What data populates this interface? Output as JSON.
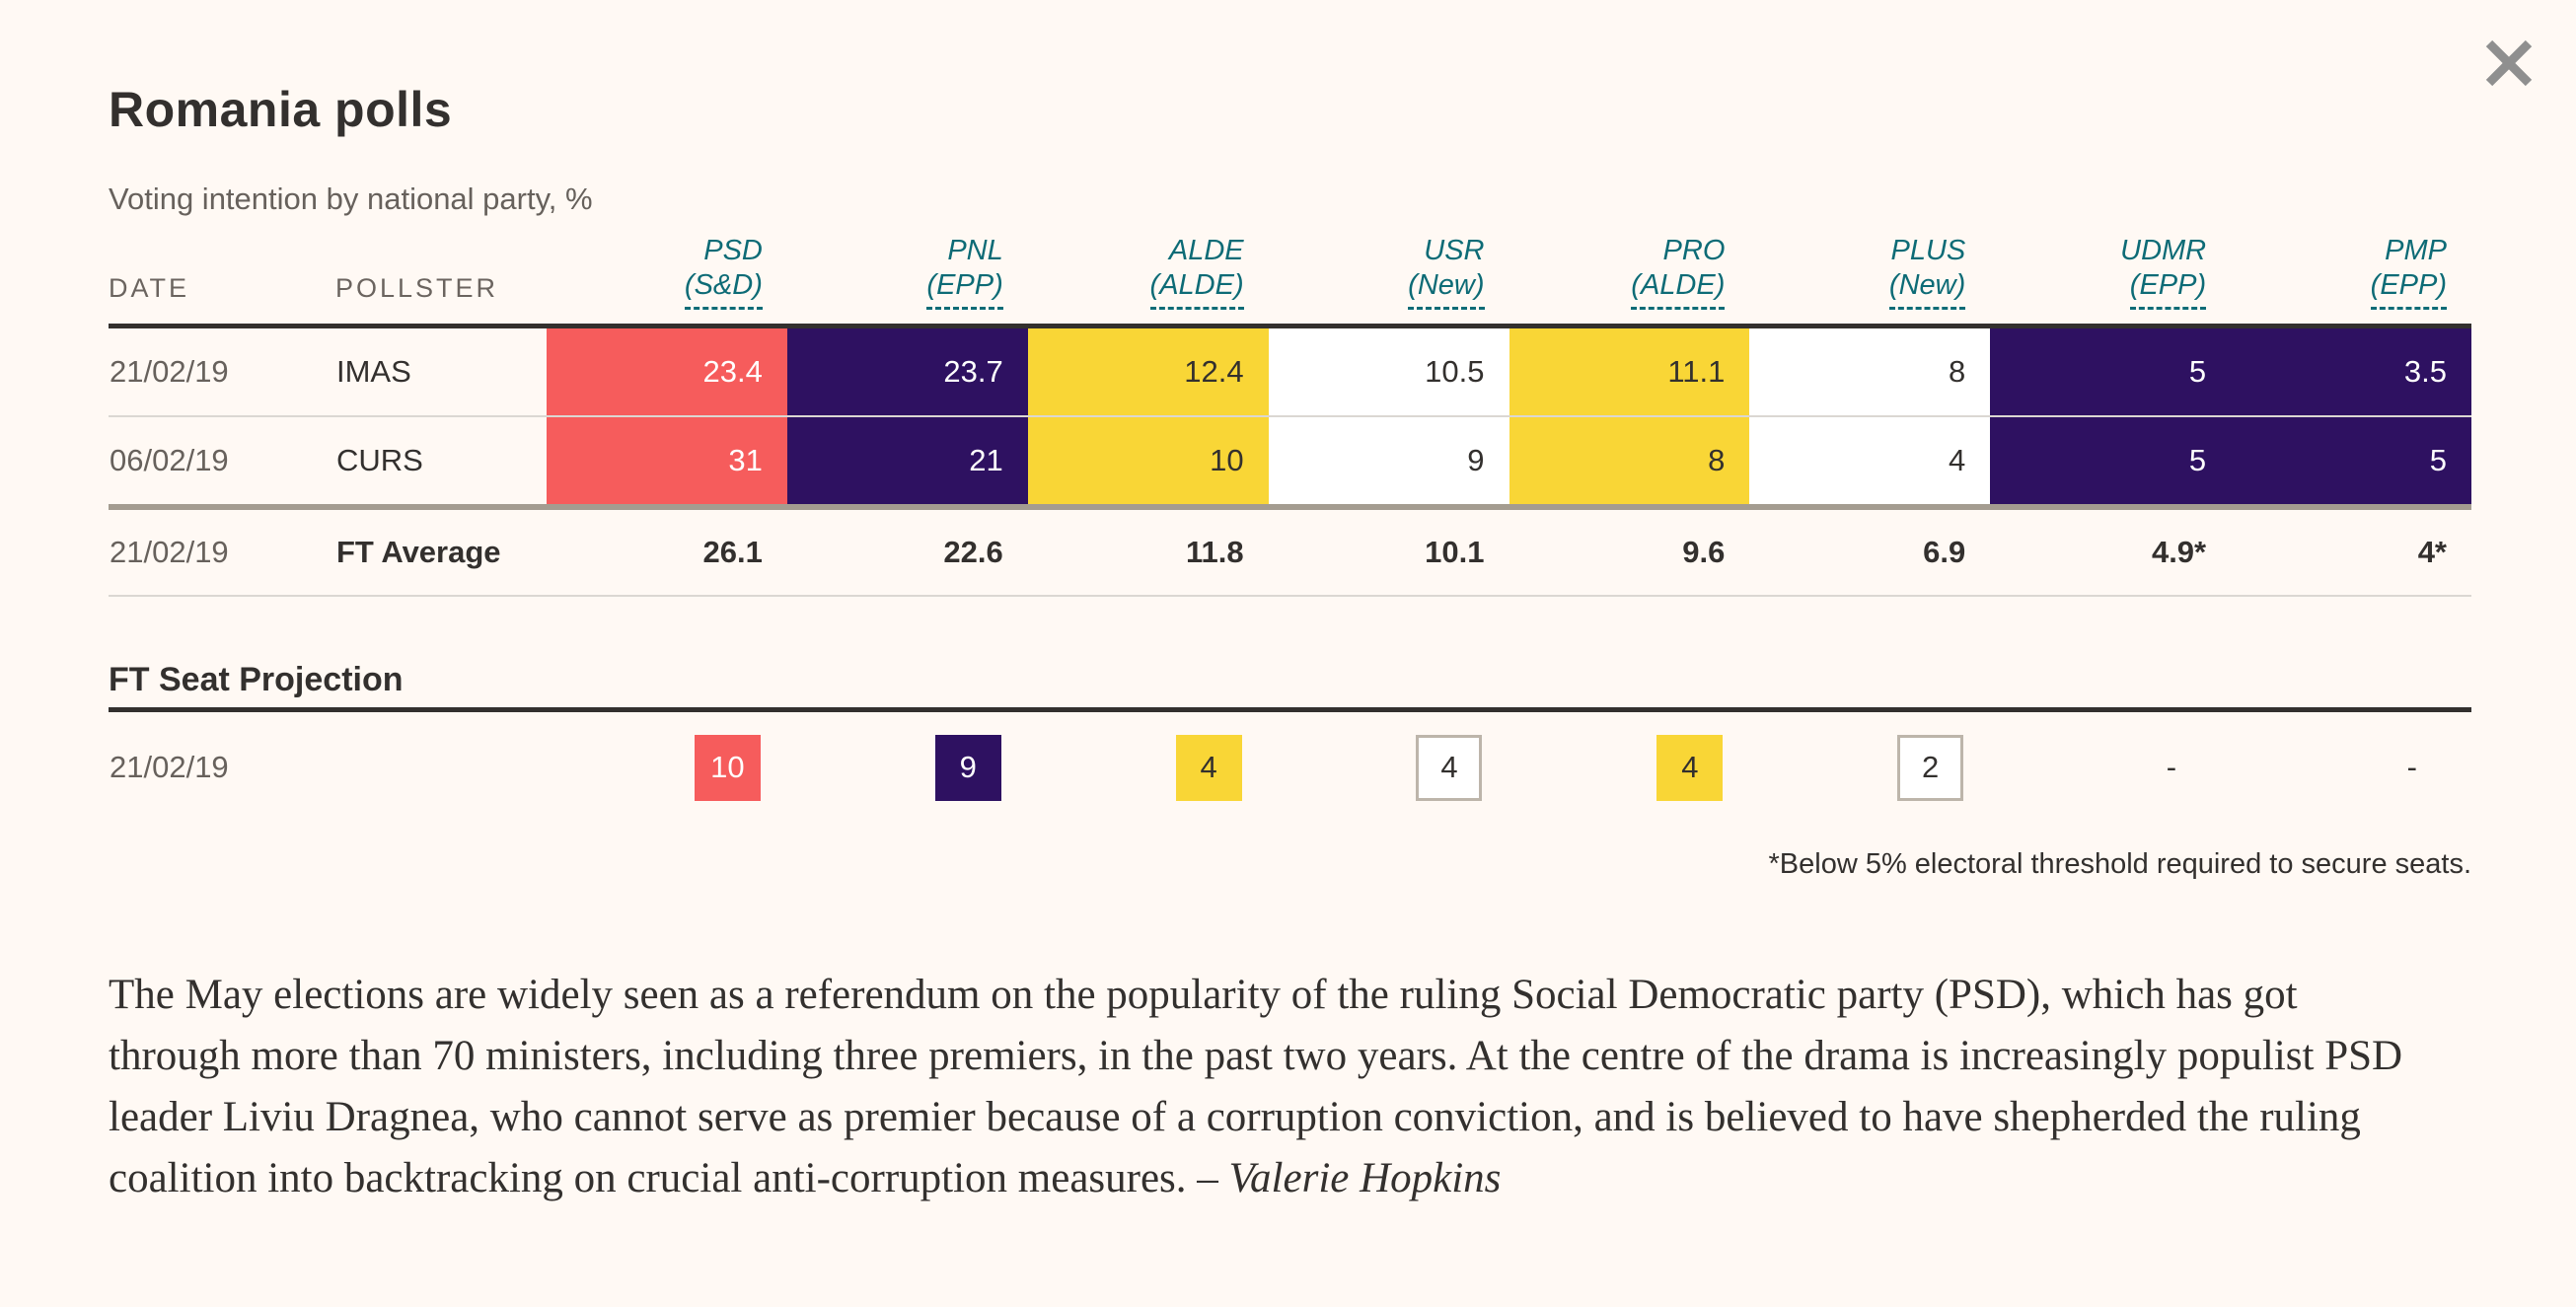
{
  "header": {
    "title": "Romania polls",
    "subtitle": "Voting intention by national party, %"
  },
  "colors": {
    "background": "#fff9f4",
    "text_dark": "#33302e",
    "text_gray": "#67615c",
    "teal_header": "#0d6b76",
    "psd_red": "#f65c5c",
    "epp_purple": "#2e1161",
    "alde_yellow": "#f9d636",
    "rule_tan": "#a49c90",
    "close_gray": "#8f8f8f"
  },
  "table": {
    "label_columns": [
      "DATE",
      "POLLSTER"
    ],
    "party_columns": [
      {
        "name": "PSD",
        "group": "(S&D)",
        "bg": "#f65c5c",
        "fg": "#ffffff"
      },
      {
        "name": "PNL",
        "group": "(EPP)",
        "bg": "#2e1161",
        "fg": "#ffffff"
      },
      {
        "name": "ALDE",
        "group": "(ALDE)",
        "bg": "#f9d636",
        "fg": "#33302e"
      },
      {
        "name": "USR",
        "group": "(New)",
        "bg": "#ffffff",
        "fg": "#33302e"
      },
      {
        "name": "PRO",
        "group": "(ALDE)",
        "bg": "#f9d636",
        "fg": "#33302e"
      },
      {
        "name": "PLUS",
        "group": "(New)",
        "bg": "#ffffff",
        "fg": "#33302e"
      },
      {
        "name": "UDMR",
        "group": "(EPP)",
        "bg": "#2e1161",
        "fg": "#ffffff"
      },
      {
        "name": "PMP",
        "group": "(EPP)",
        "bg": "#2e1161",
        "fg": "#ffffff"
      }
    ],
    "rows": [
      {
        "date": "21/02/19",
        "pollster": "IMAS",
        "values": [
          "23.4",
          "23.7",
          "12.4",
          "10.5",
          "11.1",
          "8",
          "5",
          "3.5"
        ]
      },
      {
        "date": "06/02/19",
        "pollster": "CURS",
        "values": [
          "31",
          "21",
          "10",
          "9",
          "8",
          "4",
          "5",
          "5"
        ]
      }
    ],
    "average_row": {
      "date": "21/02/19",
      "label": "FT Average",
      "values": [
        "26.1",
        "22.6",
        "11.8",
        "10.1",
        "9.6",
        "6.9",
        "4.9*",
        "4*"
      ]
    }
  },
  "seat_projection": {
    "heading": "FT Seat Projection",
    "date": "21/02/19",
    "seats": [
      {
        "value": "10",
        "style": "red"
      },
      {
        "value": "9",
        "style": "purple"
      },
      {
        "value": "4",
        "style": "yellow"
      },
      {
        "value": "4",
        "style": "outline"
      },
      {
        "value": "4",
        "style": "yellow"
      },
      {
        "value": "2",
        "style": "outline"
      },
      {
        "value": "-",
        "style": "none"
      },
      {
        "value": "-",
        "style": "none"
      }
    ],
    "footnote": "*Below 5% electoral threshold required to secure seats."
  },
  "article": {
    "text": "The May elections are widely seen as a referendum on the popularity of the ruling Social Democratic party (PSD), which has got\nthrough more than 70 ministers, including three premiers, in the past two years. At the centre of the drama is increasingly populist PSD\nleader Liviu Dragnea, who cannot serve as premier because of a corruption conviction, and is believed to have shepherded the ruling\ncoalition into backtracking on crucial anti-corruption measures. – ",
    "byline": "Valerie Hopkins"
  },
  "chart_data": {
    "type": "table",
    "title": "Romania polls",
    "subtitle": "Voting intention by national party, %",
    "categories": [
      "PSD (S&D)",
      "PNL (EPP)",
      "ALDE (ALDE)",
      "USR (New)",
      "PRO (ALDE)",
      "PLUS (New)",
      "UDMR (EPP)",
      "PMP (EPP)"
    ],
    "series": [
      {
        "name": "IMAS 21/02/19",
        "values": [
          23.4,
          23.7,
          12.4,
          10.5,
          11.1,
          8,
          5,
          3.5
        ]
      },
      {
        "name": "CURS 06/02/19",
        "values": [
          31,
          21,
          10,
          9,
          8,
          4,
          5,
          5
        ]
      },
      {
        "name": "FT Average 21/02/19",
        "values": [
          26.1,
          22.6,
          11.8,
          10.1,
          9.6,
          6.9,
          4.9,
          4
        ]
      },
      {
        "name": "FT Seat Projection 21/02/19",
        "values": [
          10,
          9,
          4,
          4,
          4,
          2,
          null,
          null
        ]
      }
    ],
    "annotations": [
      "*Below 5% electoral threshold required to secure seats.",
      "4.9* and 4* are below threshold"
    ]
  }
}
